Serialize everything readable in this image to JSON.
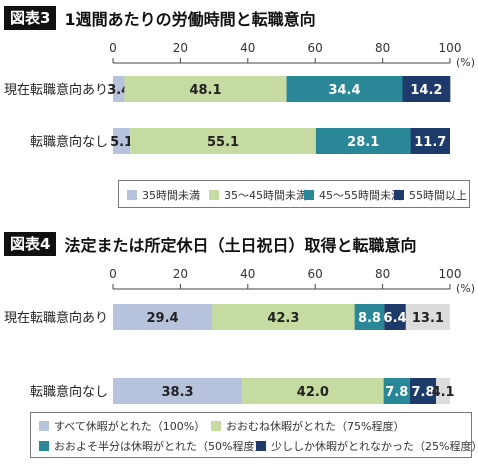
{
  "colors": {
    "c1": "#b7c2dc",
    "c2": "#c6dba1",
    "c3": "#2a8797",
    "c4": "#1e3a6a",
    "c5": "#dcdcdc"
  },
  "chart_data": [
    {
      "type": "bar",
      "stacked": true,
      "orientation": "horizontal",
      "tag": "図表3",
      "title": "1週間あたりの労働時間と転職意向",
      "unit": "(%)",
      "xlim": [
        0,
        100
      ],
      "ticks": [
        "0",
        "20",
        "40",
        "60",
        "80",
        "100"
      ],
      "categories": [
        "現在転職意向あり",
        "転職意向なし"
      ],
      "series": [
        {
          "name": "35時間未満",
          "values": [
            3.4,
            5.1
          ]
        },
        {
          "name": "35～45時間未満",
          "values": [
            48.1,
            55.1
          ]
        },
        {
          "name": "45～55時間未満",
          "values": [
            34.4,
            28.1
          ]
        },
        {
          "name": "55時間以上",
          "values": [
            14.2,
            11.7
          ]
        }
      ]
    },
    {
      "type": "bar",
      "stacked": true,
      "orientation": "horizontal",
      "tag": "図表4",
      "title": "法定または所定休日（土日祝日）取得と転職意向",
      "unit": "(%)",
      "xlim": [
        0,
        100
      ],
      "ticks": [
        "0",
        "20",
        "40",
        "60",
        "80",
        "100"
      ],
      "categories": [
        "現在転職意向あり",
        "転職意向なし"
      ],
      "series": [
        {
          "name": "すべて休暇がとれた（100%）",
          "values": [
            29.4,
            38.3
          ]
        },
        {
          "name": "おおむね休暇がとれた（75%程度）",
          "values": [
            42.3,
            42.0
          ]
        },
        {
          "name": "おおよそ半分は休暇がとれた（50%程度）",
          "values": [
            8.8,
            7.8
          ]
        },
        {
          "name": "少ししか休暇がとれなかった（25%程度）",
          "values": [
            6.4,
            7.8
          ]
        },
        {
          "name": "",
          "values": [
            13.1,
            4.1
          ]
        }
      ]
    }
  ]
}
